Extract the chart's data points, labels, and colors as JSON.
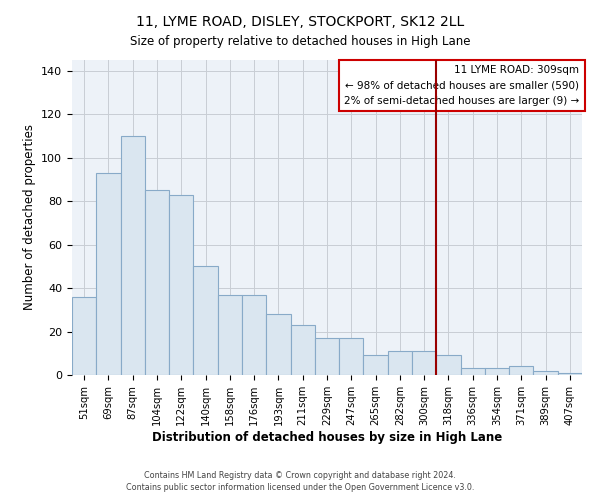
{
  "title": "11, LYME ROAD, DISLEY, STOCKPORT, SK12 2LL",
  "subtitle": "Size of property relative to detached houses in High Lane",
  "xlabel": "Distribution of detached houses by size in High Lane",
  "ylabel": "Number of detached properties",
  "bar_labels": [
    "51sqm",
    "69sqm",
    "87sqm",
    "104sqm",
    "122sqm",
    "140sqm",
    "158sqm",
    "176sqm",
    "193sqm",
    "211sqm",
    "229sqm",
    "247sqm",
    "265sqm",
    "282sqm",
    "300sqm",
    "318sqm",
    "336sqm",
    "354sqm",
    "371sqm",
    "389sqm",
    "407sqm"
  ],
  "bar_values": [
    36,
    93,
    110,
    85,
    83,
    50,
    37,
    37,
    28,
    23,
    17,
    17,
    9,
    11,
    11,
    9,
    3,
    3,
    4,
    2,
    1
  ],
  "bar_color": "#dae6f0",
  "bar_edge_color": "#88aac8",
  "vline_x_idx": 15,
  "vline_color": "#990000",
  "ylim": [
    0,
    145
  ],
  "yticks": [
    0,
    20,
    40,
    60,
    80,
    100,
    120,
    140
  ],
  "annotation_title": "11 LYME ROAD: 309sqm",
  "annotation_line1": "← 98% of detached houses are smaller (590)",
  "annotation_line2": "2% of semi-detached houses are larger (9) →",
  "annotation_box_color": "#ffffff",
  "annotation_box_edge": "#cc0000",
  "footer1": "Contains HM Land Registry data © Crown copyright and database right 2024.",
  "footer2": "Contains public sector information licensed under the Open Government Licence v3.0.",
  "plot_bg_color": "#edf2f8",
  "grid_color": "#c8cdd4"
}
